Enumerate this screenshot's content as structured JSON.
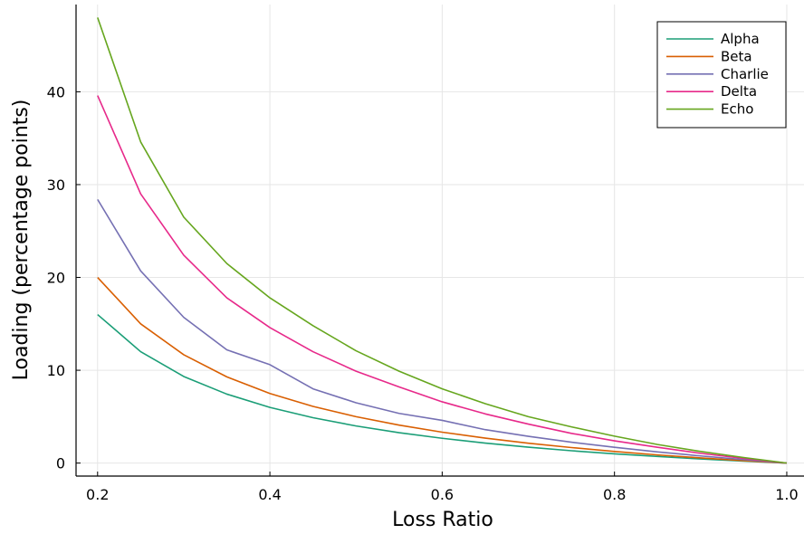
{
  "chart_data": {
    "type": "line",
    "title": "",
    "xlabel": "Loss Ratio",
    "ylabel": "Loading (percentage points)",
    "xlim": [
      0.175,
      1.02
    ],
    "ylim": [
      -1.4,
      49.4
    ],
    "xticks": [
      0.2,
      0.4,
      0.6,
      0.8,
      1.0
    ],
    "xtick_labels": [
      "0.2",
      "0.4",
      "0.6",
      "0.8",
      "1.0"
    ],
    "yticks": [
      0,
      10,
      20,
      30,
      40
    ],
    "ytick_labels": [
      "0",
      "10",
      "20",
      "30",
      "40"
    ],
    "grid": true,
    "legend_position": "top-right",
    "x": [
      0.2,
      0.25,
      0.3,
      0.35,
      0.4,
      0.45,
      0.5,
      0.55,
      0.6,
      0.65,
      0.7,
      0.75,
      0.8,
      0.85,
      0.9,
      0.95,
      1.0
    ],
    "series": [
      {
        "name": "Alpha",
        "color": "#1b9e77",
        "values": [
          16.0,
          12.0,
          9.33,
          7.43,
          6.0,
          4.89,
          4.0,
          3.27,
          2.67,
          2.15,
          1.71,
          1.33,
          1.0,
          0.71,
          0.44,
          0.21,
          0.0
        ]
      },
      {
        "name": "Beta",
        "color": "#d95f02",
        "values": [
          20.0,
          15.0,
          11.67,
          9.29,
          7.5,
          6.11,
          5.0,
          4.09,
          3.33,
          2.69,
          2.14,
          1.67,
          1.25,
          0.88,
          0.56,
          0.26,
          0.0
        ]
      },
      {
        "name": "Charlie",
        "color": "#7570b3",
        "values": [
          28.4,
          20.7,
          15.7,
          12.2,
          10.6,
          8.0,
          6.5,
          5.35,
          4.6,
          3.6,
          2.88,
          2.25,
          1.7,
          1.2,
          0.77,
          0.37,
          0.0
        ]
      },
      {
        "name": "Delta",
        "color": "#e7298a",
        "values": [
          39.6,
          29.0,
          22.4,
          17.8,
          14.6,
          12.0,
          9.9,
          8.2,
          6.6,
          5.3,
          4.2,
          3.2,
          2.4,
          1.7,
          1.05,
          0.5,
          0.0
        ]
      },
      {
        "name": "Echo",
        "color": "#66a61e",
        "values": [
          48.0,
          34.6,
          26.5,
          21.5,
          17.8,
          14.8,
          12.1,
          9.9,
          8.0,
          6.4,
          5.0,
          3.9,
          2.9,
          2.0,
          1.25,
          0.6,
          0.0
        ]
      }
    ]
  }
}
